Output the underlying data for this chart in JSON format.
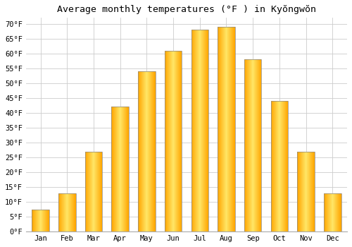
{
  "title": "Average monthly temperatures (°F ) in Kyŏngwŏn",
  "months": [
    "Jan",
    "Feb",
    "Mar",
    "Apr",
    "May",
    "Jun",
    "Jul",
    "Aug",
    "Sep",
    "Oct",
    "Nov",
    "Dec"
  ],
  "values": [
    7.5,
    13.0,
    27.0,
    42.0,
    54.0,
    61.0,
    68.0,
    69.0,
    58.0,
    44.0,
    27.0,
    13.0
  ],
  "bar_color_center": "#FFE066",
  "bar_color_edge": "#FFA500",
  "bar_border_color": "#888888",
  "yticks": [
    0,
    5,
    10,
    15,
    20,
    25,
    30,
    35,
    40,
    45,
    50,
    55,
    60,
    65,
    70
  ],
  "ylim": [
    0,
    72
  ],
  "background_color": "#ffffff",
  "grid_color": "#cccccc",
  "title_fontsize": 9.5,
  "tick_fontsize": 7.5,
  "font_family": "monospace",
  "bar_width": 0.65
}
